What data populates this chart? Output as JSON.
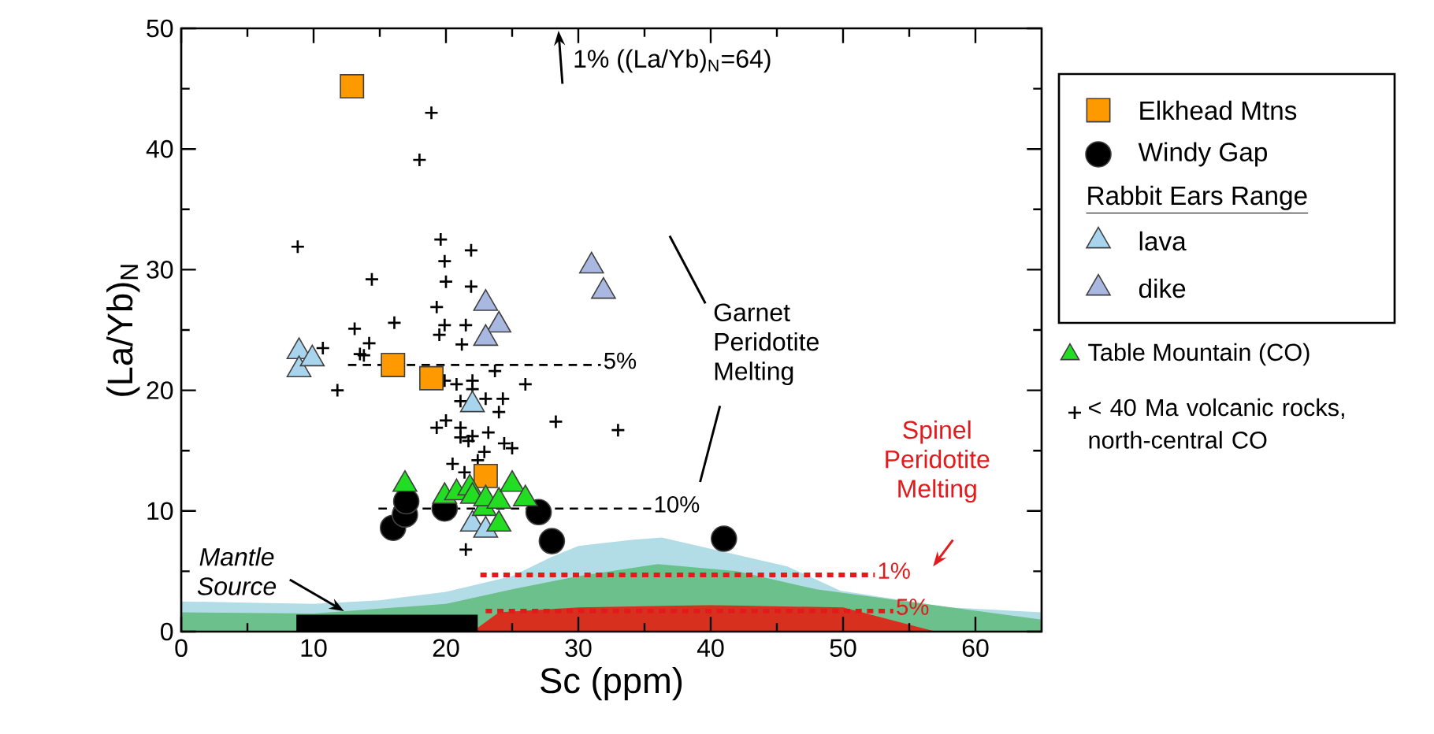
{
  "chart_data": {
    "type": "scatter",
    "xlabel": "Sc (ppm)",
    "ylabel": "(La/Yb)$_{N}$",
    "xlim": [
      0,
      65
    ],
    "xticks": [
      0,
      10,
      20,
      30,
      40,
      50,
      60
    ],
    "ylim": [
      0,
      50
    ],
    "yticks": [
      0,
      10,
      20,
      30,
      40,
      50
    ],
    "grid": false,
    "legend": "right",
    "legend_title": "Rabbit Ears Range",
    "annotations": [
      "1% ((La/Yb)$_{N}$=64)",
      "Garnet Peridotite Melting",
      "Spinel Peridotite Melting",
      "Mantle Source"
    ],
    "series": [
      {
        "type": "area",
        "color": "#b3dde6",
        "x": [
          0,
          5,
          10,
          15,
          20,
          25,
          28,
          30,
          34,
          36.3,
          45.8,
          49.8,
          58,
          65
        ],
        "values": [
          2.5,
          2.4,
          2.3,
          2.6,
          3.3,
          4.6,
          6.2,
          7.1,
          7.6,
          7.8,
          5.4,
          3.4,
          2.0,
          1.6
        ]
      },
      {
        "type": "area",
        "color": "#6cc08b",
        "x": [
          0,
          10,
          20,
          25,
          30,
          36,
          42,
          48,
          65
        ],
        "values": [
          1.6,
          1.5,
          2.3,
          3.5,
          4.6,
          5.6,
          5.0,
          3.5,
          1.0
        ]
      },
      {
        "type": "area",
        "color": "#d7301f",
        "x": [
          22,
          24,
          30,
          40,
          50,
          57
        ],
        "values": [
          0,
          1.6,
          2.0,
          2.2,
          2.0,
          0
        ]
      },
      {
        "type": "area",
        "color": "#000000",
        "x": [
          8.7,
          22.4
        ],
        "values": [
          1.4,
          1.4
        ]
      },
      {
        "type": "line",
        "name": "5%",
        "color": "#000000",
        "line_style": "dashed",
        "x": [
          12.6,
          31.7
        ],
        "values": [
          22.1,
          22.1
        ]
      },
      {
        "type": "line",
        "name": "10%",
        "color": "#000000",
        "line_style": "dashed",
        "x": [
          14.9,
          35.5
        ],
        "values": [
          10.2,
          10.2
        ]
      },
      {
        "type": "line",
        "name": "1%",
        "color": "#e31a1c",
        "line_style": "dotted",
        "x": [
          22.6,
          52.4
        ],
        "values": [
          4.7,
          4.7
        ]
      },
      {
        "type": "line",
        "name": "5%",
        "color": "#e31a1c",
        "line_style": "dotted",
        "x": [
          23.0,
          53.8
        ],
        "values": [
          1.7,
          1.7
        ]
      },
      {
        "name": "< 40 Ma volcanic rocks, north-central CO",
        "color": "#000000",
        "marker": "cross",
        "x": [
          18.9,
          18.0,
          8.8,
          19.6,
          21.9,
          19.9,
          14.4,
          20.0,
          21.9,
          19.3,
          16.1,
          13.1,
          19.9,
          19.5,
          21.5,
          14.2,
          21.2,
          13.8,
          10.7,
          23.7,
          26.0,
          11.8,
          13.5,
          19.9,
          20.8,
          22.0,
          21.1,
          22.0,
          23.0,
          24.3,
          24.0,
          20.0,
          19.3,
          21.1,
          22.0,
          23.2,
          21.1,
          21.7,
          24.4,
          25.0,
          22.9,
          20.5,
          22.4,
          21.4,
          28.3,
          33.0,
          21.5
        ],
        "values": [
          43.0,
          39.1,
          31.9,
          32.5,
          31.6,
          30.7,
          29.2,
          29.0,
          28.6,
          26.9,
          25.6,
          25.1,
          25.4,
          24.6,
          25.4,
          23.9,
          23.8,
          22.9,
          23.5,
          21.6,
          20.5,
          20.0,
          23.0,
          20.8,
          20.5,
          20.8,
          19.1,
          20.1,
          19.3,
          19.3,
          18.2,
          17.5,
          16.9,
          16.9,
          16.2,
          16.5,
          16.1,
          15.8,
          15.6,
          15.2,
          14.9,
          13.9,
          14.2,
          13.2,
          17.4,
          16.7,
          6.8
        ]
      },
      {
        "name": "Elkhead Mtns",
        "color": "#ff9900",
        "marker": "square",
        "x": [
          12.9,
          16.0,
          18.9,
          23.0
        ],
        "values": [
          45.2,
          22.1,
          21.0,
          12.9
        ]
      },
      {
        "name": "Windy Gap",
        "color": "#000000",
        "marker": "circle",
        "x": [
          16.0,
          16.9,
          17.0,
          19.9,
          27.0,
          28.0,
          41.0
        ],
        "values": [
          8.6,
          9.7,
          10.8,
          10.2,
          9.9,
          7.5,
          7.7
        ]
      },
      {
        "name": "lava",
        "color": "#a8d4ee",
        "marker": "triangle",
        "x": [
          8.9,
          8.9,
          9.9,
          22.0,
          22.0,
          23.0
        ],
        "values": [
          23.2,
          21.7,
          22.6,
          18.8,
          8.9,
          8.4
        ]
      },
      {
        "name": "dike",
        "color": "#a9b8e0",
        "marker": "triangle",
        "x": [
          23.0,
          24.0,
          23.0,
          31.0,
          31.9
        ],
        "values": [
          27.2,
          25.4,
          24.3,
          30.3,
          28.2
        ]
      },
      {
        "name": "Table Mountain (CO)",
        "color": "#22dd22",
        "marker": "triangle",
        "x": [
          16.9,
          19.9,
          20.8,
          21.8,
          22.0,
          22.9,
          23.0,
          24.0,
          25.0,
          26.0,
          24.0
        ],
        "values": [
          12.2,
          11.2,
          11.5,
          11.9,
          11.2,
          10.2,
          11.0,
          10.8,
          12.2,
          11.0,
          8.9
        ]
      }
    ]
  }
}
